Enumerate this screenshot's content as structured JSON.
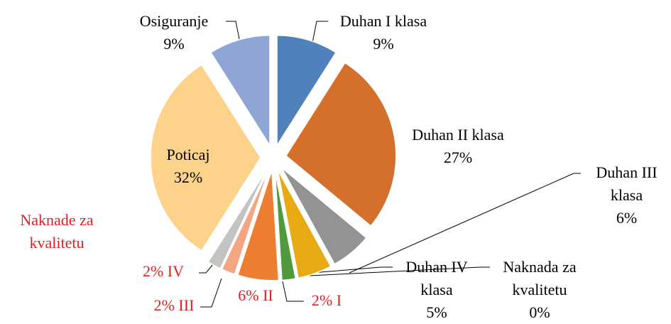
{
  "chart_data": {
    "type": "pie",
    "categories": [
      "Duhan I klasa",
      "Duhan II klasa",
      "Duhan III klasa",
      "Duhan IV klasa",
      "Naknada za kvalitetu",
      "I",
      "II",
      "III",
      "IV",
      "Poticaj",
      "Osiguranje"
    ],
    "values": [
      9,
      27,
      6,
      5,
      0,
      2,
      6,
      2,
      2,
      32,
      9
    ],
    "value_labels": [
      "9%",
      "27%",
      "6%",
      "5%",
      "0%",
      "2%",
      "6%",
      "2%",
      "2%",
      "32%",
      "9%"
    ],
    "colors": [
      "#4f81bd",
      "#d4702c",
      "#939393",
      "#e8aa13",
      "#7f6000",
      "#4e9a3d",
      "#ed7d31",
      "#f4a582",
      "#c3c3c3",
      "#fdd38b",
      "#8fa5d6"
    ],
    "annotation": "Naknade za kvalitetu"
  }
}
